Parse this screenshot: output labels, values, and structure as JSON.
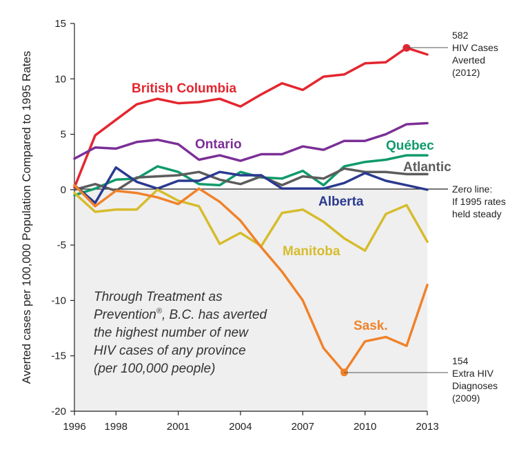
{
  "chart_data": {
    "type": "line",
    "title": "",
    "xlabel": "",
    "ylabel": "Averted cases per 100,000 Population Compared to 1995 Rates",
    "xlim": [
      1996,
      2013
    ],
    "ylim": [
      -20,
      15
    ],
    "x_ticks": [
      "1996",
      "1998",
      "2001",
      "2004",
      "2007",
      "2010",
      "2013"
    ],
    "y_ticks": [
      "15",
      "10",
      "5",
      "0",
      "-5",
      "-10",
      "-15",
      "-20"
    ],
    "x": [
      1996,
      1997,
      1998,
      1999,
      2000,
      2001,
      2002,
      2003,
      2004,
      2005,
      2006,
      2007,
      2008,
      2009,
      2010,
      2011,
      2012,
      2013
    ],
    "series": [
      {
        "name": "British Columbia",
        "color": "#e4262f",
        "values": [
          0.2,
          4.9,
          6.3,
          7.7,
          8.2,
          7.8,
          7.9,
          8.2,
          7.5,
          8.6,
          9.6,
          9.0,
          10.2,
          10.4,
          11.4,
          11.5,
          12.8,
          12.2
        ]
      },
      {
        "name": "Ontario",
        "color": "#7b2f96",
        "values": [
          2.8,
          3.8,
          3.7,
          4.3,
          4.5,
          4.1,
          2.7,
          3.1,
          2.6,
          3.2,
          3.2,
          3.9,
          3.6,
          4.4,
          4.4,
          5.0,
          5.9,
          6.0
        ]
      },
      {
        "name": "Québec",
        "color": "#0f9a6a",
        "values": [
          -0.5,
          0.1,
          0.9,
          1.0,
          2.1,
          1.6,
          0.5,
          0.4,
          1.6,
          1.1,
          1.0,
          1.7,
          0.4,
          2.1,
          2.5,
          2.7,
          3.1,
          3.1
        ]
      },
      {
        "name": "Atlantic",
        "color": "#5c5c5c",
        "values": [
          0.0,
          0.5,
          -0.1,
          1.1,
          1.2,
          1.3,
          1.6,
          0.9,
          0.5,
          1.2,
          0.4,
          1.2,
          1.0,
          1.9,
          1.6,
          1.6,
          1.4,
          1.4
        ]
      },
      {
        "name": "Alberta",
        "color": "#2b3a8f",
        "values": [
          0.4,
          -1.2,
          2.0,
          0.7,
          0.1,
          0.8,
          0.8,
          1.6,
          1.3,
          1.3,
          0.1,
          0.1,
          0.1,
          0.6,
          1.5,
          0.8,
          0.4,
          0.0
        ]
      },
      {
        "name": "Manitoba",
        "color": "#d6bc2c",
        "values": [
          -0.3,
          -2.0,
          -1.8,
          -1.8,
          0.0,
          -1.0,
          -1.5,
          -4.9,
          -3.9,
          -5.1,
          -2.1,
          -1.8,
          -2.9,
          -4.4,
          -5.5,
          -2.2,
          -1.4,
          -4.7
        ]
      },
      {
        "name": "Sask.",
        "color": "#f0822a",
        "values": [
          0.4,
          -1.5,
          -0.1,
          -0.3,
          -0.7,
          -1.3,
          0.1,
          -1.1,
          -2.8,
          -5.2,
          -7.4,
          -10.0,
          -14.3,
          -16.5,
          -13.7,
          -13.3,
          -14.1,
          -8.6
        ]
      }
    ],
    "markers": [
      {
        "series": "British Columbia",
        "x": 2012,
        "y": 12.8
      },
      {
        "series": "Sask.",
        "x": 2009,
        "y": -16.5
      }
    ],
    "reference_line": {
      "y": 0
    },
    "shaded_region": "below zero",
    "grid": false,
    "legend": "inline labels"
  },
  "labels": {
    "bc": "British Columbia",
    "ontario": "Ontario",
    "quebec": "Québec",
    "atlantic": "Atlantic",
    "alberta": "Alberta",
    "manitoba": "Manitoba",
    "sask": "Sask."
  },
  "annotations": {
    "bc_value": "582",
    "bc_line1": "HIV Cases",
    "bc_line2": "Averted",
    "bc_year": "(2012)",
    "zero_line1": "Zero line:",
    "zero_line2": "If 1995 rates",
    "zero_line3": "held steady",
    "sask_value": "154",
    "sask_line1": "Extra HIV",
    "sask_line2": "Diagnoses",
    "sask_year": "(2009)"
  },
  "callout": {
    "line1": "Through Treatment as",
    "line2_pre": "Prevention",
    "line2_reg": "®",
    "line2_post": ", B.C. has averted",
    "line3": "the highest number of new",
    "line4": "HIV cases of any province",
    "line5": "(per 100,000 people)"
  }
}
